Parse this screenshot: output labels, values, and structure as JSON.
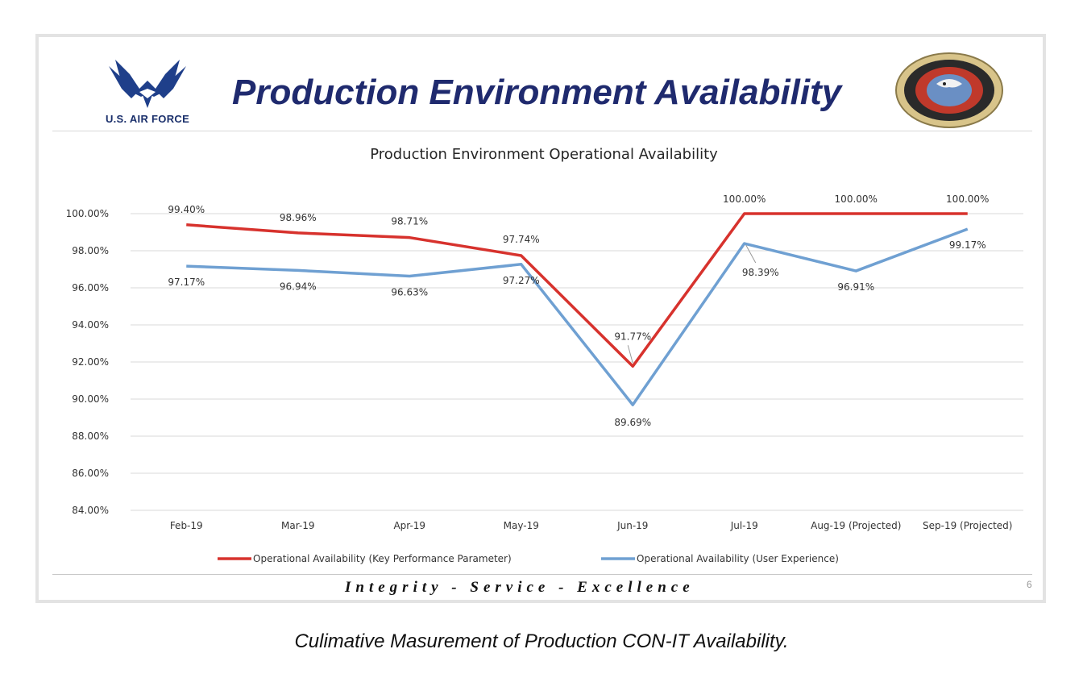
{
  "slide": {
    "title": "Production Environment Availability",
    "logo_text": "U.S. AIR FORCE",
    "motto": "Integrity - Service - Excellence",
    "page_number": "6"
  },
  "caption": "Culimative Masurement of Production CON-IT Availability.",
  "colors": {
    "kpp": "#d7322d",
    "ux": "#6fa0d2",
    "title_blue": "#1f2a6e"
  },
  "chart_data": {
    "type": "line",
    "title": "Production Environment Operational Availability",
    "xlabel": "",
    "ylabel": "",
    "categories": [
      "Feb-19",
      "Mar-19",
      "Apr-19",
      "May-19",
      "Jun-19",
      "Jul-19",
      "Aug-19 (Projected)",
      "Sep-19 (Projected)"
    ],
    "ylim": [
      84,
      100
    ],
    "yticks": [
      "84.00%",
      "86.00%",
      "88.00%",
      "90.00%",
      "92.00%",
      "94.00%",
      "96.00%",
      "98.00%",
      "100.00%"
    ],
    "grid": true,
    "legend_position": "bottom",
    "series": [
      {
        "name": "Operational Availability (Key Performance Parameter)",
        "values": [
          99.4,
          98.96,
          98.71,
          97.74,
          91.77,
          100.0,
          100.0,
          100.0
        ],
        "labels": [
          "99.40%",
          "98.96%",
          "98.71%",
          "97.74%",
          "91.77%",
          "100.00%",
          "100.00%",
          "100.00%"
        ]
      },
      {
        "name": "Operational Availability (User Experience)",
        "values": [
          97.17,
          96.94,
          96.63,
          97.27,
          89.69,
          98.39,
          96.91,
          99.17
        ],
        "labels": [
          "97.17%",
          "96.94%",
          "96.63%",
          "97.27%",
          "89.69%",
          "98.39%",
          "96.91%",
          "99.17%"
        ]
      }
    ]
  }
}
